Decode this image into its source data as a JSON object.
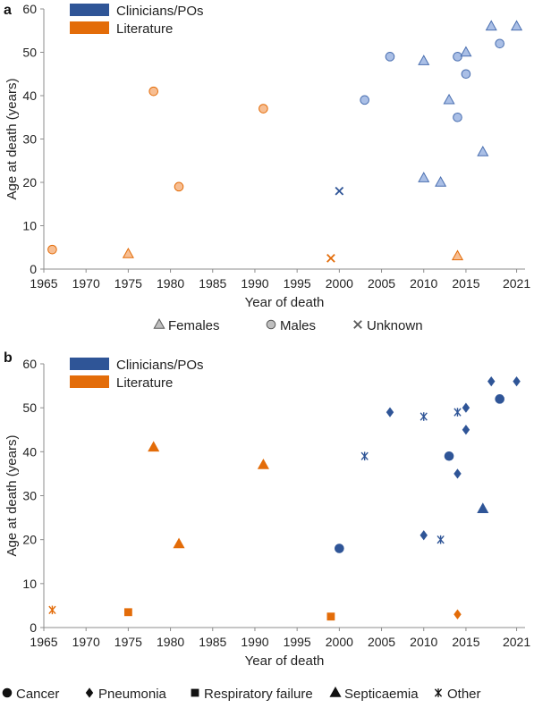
{
  "colors": {
    "clinicians": "#2f5597",
    "literature": "#e36c09",
    "clinicians_light_fill": "#aabfe6",
    "clinicians_light_stroke": "#4a6fb0",
    "literature_light_fill": "#f7be92",
    "literature_light_stroke": "#e36c09",
    "legend_gray_fill": "#bfbfbf",
    "legend_gray_stroke": "#595959"
  },
  "chart_data": [
    {
      "panel": "a",
      "type": "scatter",
      "xlabel": "Year of death",
      "ylabel": "Age at death (years)",
      "xlim": [
        1965,
        2022
      ],
      "ylim": [
        0,
        60
      ],
      "x_ticks": [
        "1965",
        "1970",
        "1975",
        "1980",
        "1985",
        "1990",
        "1995",
        "2000",
        "2005",
        "2010",
        "2015",
        "2021"
      ],
      "y_ticks": [
        "0",
        "10",
        "20",
        "30",
        "40",
        "50",
        "60"
      ],
      "source_legend": [
        "Clinicians/POs",
        "Literature"
      ],
      "marker_legend": [
        "Females",
        "Males",
        "Unknown"
      ],
      "legend_position": "top-left",
      "points": [
        {
          "x": 1966,
          "y": 4.5,
          "source": "Literature",
          "marker": "Males"
        },
        {
          "x": 1975,
          "y": 3.5,
          "source": "Literature",
          "marker": "Females"
        },
        {
          "x": 1978,
          "y": 41,
          "source": "Literature",
          "marker": "Males"
        },
        {
          "x": 1981,
          "y": 19,
          "source": "Literature",
          "marker": "Males"
        },
        {
          "x": 1991,
          "y": 37,
          "source": "Literature",
          "marker": "Males"
        },
        {
          "x": 1999,
          "y": 2.5,
          "source": "Literature",
          "marker": "Unknown"
        },
        {
          "x": 2000,
          "y": 18,
          "source": "Clinicians/POs",
          "marker": "Unknown"
        },
        {
          "x": 2003,
          "y": 39,
          "source": "Clinicians/POs",
          "marker": "Males"
        },
        {
          "x": 2006,
          "y": 49,
          "source": "Clinicians/POs",
          "marker": "Males"
        },
        {
          "x": 2010,
          "y": 48,
          "source": "Clinicians/POs",
          "marker": "Females"
        },
        {
          "x": 2010,
          "y": 21,
          "source": "Clinicians/POs",
          "marker": "Females"
        },
        {
          "x": 2012,
          "y": 20,
          "source": "Clinicians/POs",
          "marker": "Females"
        },
        {
          "x": 2013,
          "y": 39,
          "source": "Clinicians/POs",
          "marker": "Females"
        },
        {
          "x": 2014,
          "y": 49,
          "source": "Clinicians/POs",
          "marker": "Males"
        },
        {
          "x": 2014,
          "y": 35,
          "source": "Clinicians/POs",
          "marker": "Males"
        },
        {
          "x": 2014,
          "y": 3,
          "source": "Literature",
          "marker": "Females"
        },
        {
          "x": 2015,
          "y": 50,
          "source": "Clinicians/POs",
          "marker": "Females"
        },
        {
          "x": 2015,
          "y": 45,
          "source": "Clinicians/POs",
          "marker": "Males"
        },
        {
          "x": 2017,
          "y": 27,
          "source": "Clinicians/POs",
          "marker": "Females"
        },
        {
          "x": 2018,
          "y": 56,
          "source": "Clinicians/POs",
          "marker": "Females"
        },
        {
          "x": 2019,
          "y": 52,
          "source": "Clinicians/POs",
          "marker": "Males"
        },
        {
          "x": 2021,
          "y": 56,
          "source": "Clinicians/POs",
          "marker": "Females"
        }
      ]
    },
    {
      "panel": "b",
      "type": "scatter",
      "xlabel": "Year of death",
      "ylabel": "Age at death (years)",
      "xlim": [
        1965,
        2022
      ],
      "ylim": [
        0,
        60
      ],
      "x_ticks": [
        "1965",
        "1970",
        "1975",
        "1980",
        "1985",
        "1990",
        "1995",
        "2000",
        "2005",
        "2010",
        "2015",
        "2021"
      ],
      "y_ticks": [
        "0",
        "10",
        "20",
        "30",
        "40",
        "50",
        "60"
      ],
      "source_legend": [
        "Clinicians/POs",
        "Literature"
      ],
      "marker_legend": [
        "Cancer",
        "Pneumonia",
        "Respiratory failure",
        "Septicaemia",
        "Other"
      ],
      "legend_position": "top-left",
      "points": [
        {
          "x": 1966,
          "y": 4,
          "source": "Literature",
          "marker": "Other"
        },
        {
          "x": 1975,
          "y": 3.5,
          "source": "Literature",
          "marker": "Respiratory failure"
        },
        {
          "x": 1978,
          "y": 41,
          "source": "Literature",
          "marker": "Septicaemia"
        },
        {
          "x": 1981,
          "y": 19,
          "source": "Literature",
          "marker": "Septicaemia"
        },
        {
          "x": 1991,
          "y": 37,
          "source": "Literature",
          "marker": "Septicaemia"
        },
        {
          "x": 1999,
          "y": 2.5,
          "source": "Literature",
          "marker": "Respiratory failure"
        },
        {
          "x": 2000,
          "y": 18,
          "source": "Clinicians/POs",
          "marker": "Cancer"
        },
        {
          "x": 2003,
          "y": 39,
          "source": "Clinicians/POs",
          "marker": "Other"
        },
        {
          "x": 2006,
          "y": 49,
          "source": "Clinicians/POs",
          "marker": "Pneumonia"
        },
        {
          "x": 2010,
          "y": 48,
          "source": "Clinicians/POs",
          "marker": "Other"
        },
        {
          "x": 2010,
          "y": 21,
          "source": "Clinicians/POs",
          "marker": "Pneumonia"
        },
        {
          "x": 2012,
          "y": 20,
          "source": "Clinicians/POs",
          "marker": "Other"
        },
        {
          "x": 2013,
          "y": 39,
          "source": "Clinicians/POs",
          "marker": "Cancer"
        },
        {
          "x": 2014,
          "y": 49,
          "source": "Clinicians/POs",
          "marker": "Other"
        },
        {
          "x": 2014,
          "y": 35,
          "source": "Clinicians/POs",
          "marker": "Pneumonia"
        },
        {
          "x": 2014,
          "y": 3,
          "source": "Literature",
          "marker": "Pneumonia"
        },
        {
          "x": 2015,
          "y": 50,
          "source": "Clinicians/POs",
          "marker": "Pneumonia"
        },
        {
          "x": 2015,
          "y": 45,
          "source": "Clinicians/POs",
          "marker": "Pneumonia"
        },
        {
          "x": 2017,
          "y": 27,
          "source": "Clinicians/POs",
          "marker": "Septicaemia"
        },
        {
          "x": 2018,
          "y": 56,
          "source": "Clinicians/POs",
          "marker": "Pneumonia"
        },
        {
          "x": 2019,
          "y": 52,
          "source": "Clinicians/POs",
          "marker": "Cancer"
        },
        {
          "x": 2021,
          "y": 56,
          "source": "Clinicians/POs",
          "marker": "Pneumonia"
        }
      ]
    }
  ]
}
